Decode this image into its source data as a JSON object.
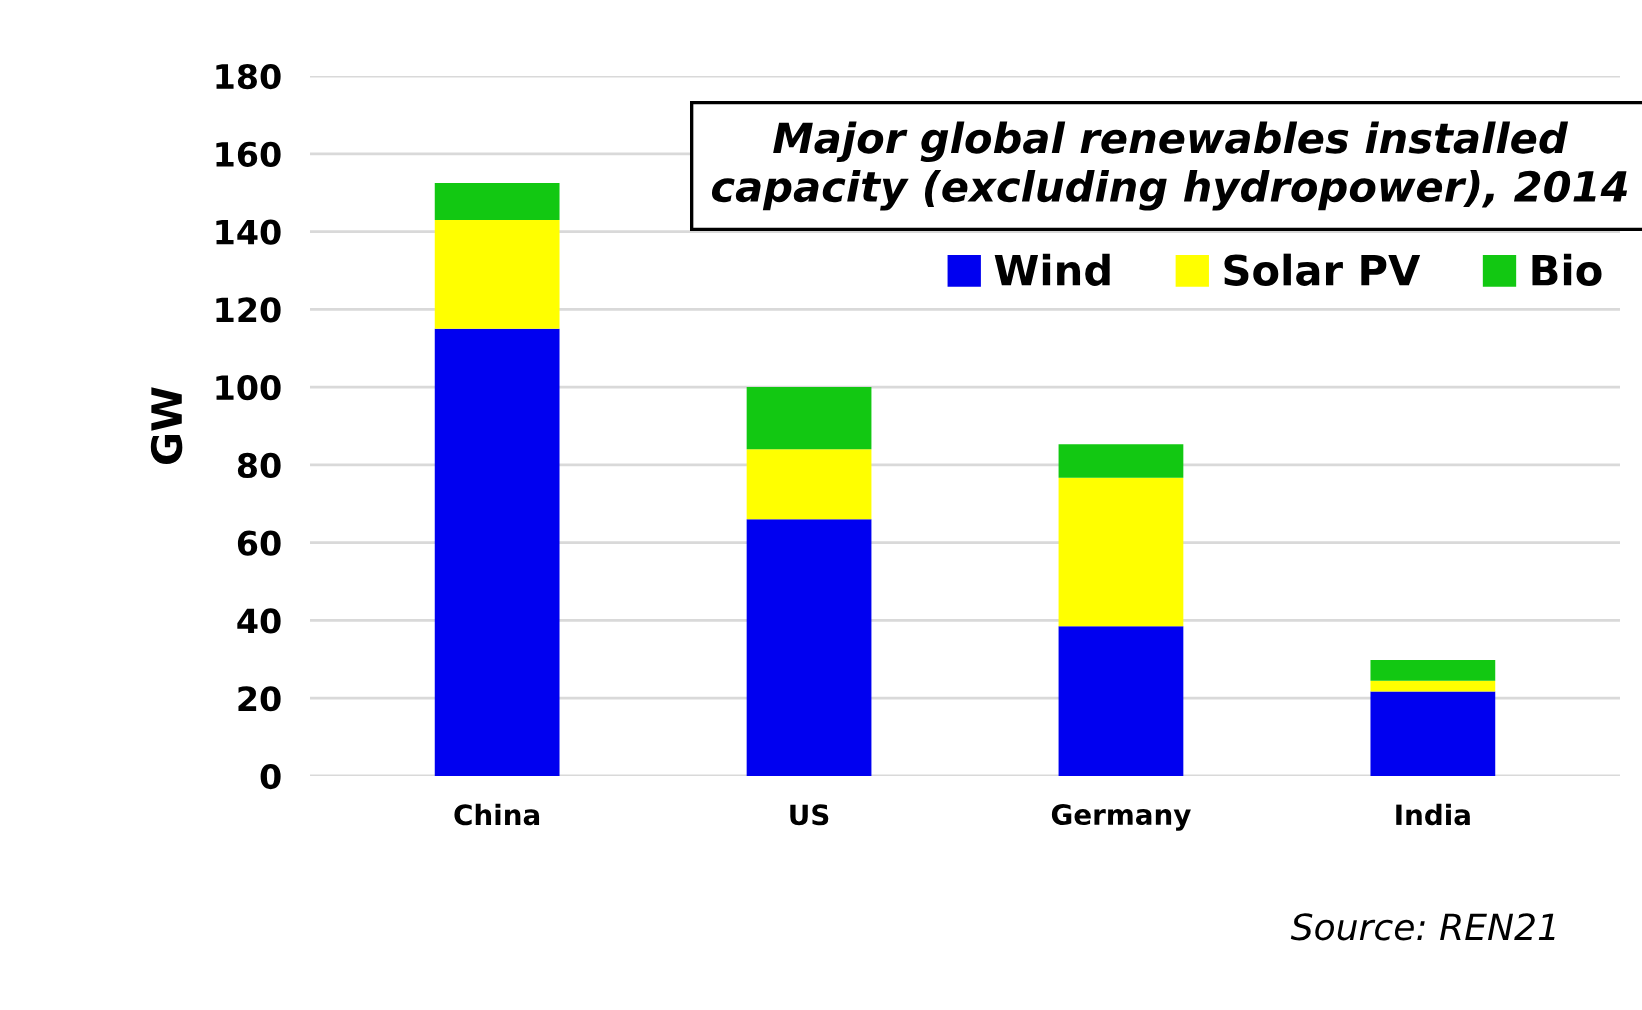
{
  "chart_data": {
    "type": "bar",
    "title": "Major global renewables installed capacity (excluding hydropower), 2014",
    "ylabel": "GW",
    "categories": [
      "China",
      "US",
      "Germany",
      "India"
    ],
    "stacked": true,
    "series": [
      {
        "name": "Wind",
        "color": "#0000f0",
        "values": [
          115,
          66,
          38.5,
          21.7
        ]
      },
      {
        "name": "Solar PV",
        "color": "#ffff00",
        "values": [
          28,
          18,
          38.2,
          2.8
        ]
      },
      {
        "name": "Bio",
        "color": "#12c812",
        "values": [
          9.5,
          16,
          8.6,
          5.3
        ]
      }
    ],
    "ylim": [
      0,
      180
    ],
    "yticks": [
      0,
      20,
      40,
      60,
      80,
      100,
      120,
      140,
      160,
      180
    ],
    "grid": "y",
    "legend": "top right",
    "annotations": [
      "Source: REN21"
    ]
  }
}
